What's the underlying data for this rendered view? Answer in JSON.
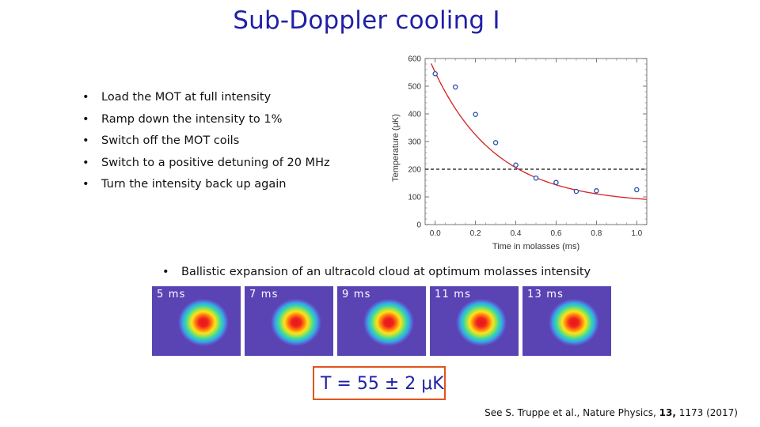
{
  "title": "Sub-Doppler cooling I",
  "steps": [
    "Load the MOT at full intensity",
    "Ramp down the intensity to 1%",
    "Switch off the MOT coils",
    "Switch to a positive detuning of 20 MHz",
    "Turn the intensity back up again"
  ],
  "bullet_char": "•",
  "chart_data": {
    "type": "scatter",
    "title": "",
    "xlabel": "Time in molasses (ms)",
    "ylabel": "Temperature (μK)",
    "xlim": [
      -0.05,
      1.05
    ],
    "ylim": [
      0,
      600
    ],
    "x_ticks": [
      "0.0",
      "0.2",
      "0.4",
      "0.6",
      "0.8",
      "1.0"
    ],
    "y_ticks": [
      "0",
      "100",
      "200",
      "300",
      "400",
      "500",
      "600"
    ],
    "x_tick_values": [
      0.0,
      0.2,
      0.4,
      0.6,
      0.8,
      1.0
    ],
    "y_tick_values": [
      0,
      100,
      200,
      300,
      400,
      500,
      600
    ],
    "points": [
      {
        "x": 0.0,
        "y": 545
      },
      {
        "x": 0.1,
        "y": 497
      },
      {
        "x": 0.2,
        "y": 398
      },
      {
        "x": 0.3,
        "y": 296
      },
      {
        "x": 0.4,
        "y": 215
      },
      {
        "x": 0.5,
        "y": 168
      },
      {
        "x": 0.6,
        "y": 152
      },
      {
        "x": 0.7,
        "y": 120
      },
      {
        "x": 0.8,
        "y": 122
      },
      {
        "x": 1.0,
        "y": 126
      }
    ],
    "fit": {
      "type": "exponential",
      "a": 475,
      "tau": 0.31,
      "offset": 75
    },
    "reference_line": {
      "y": 200,
      "style": "dashed"
    },
    "point_color": "#2a4fa8",
    "fit_color": "#d42020"
  },
  "expansion": {
    "caption": "Ballistic expansion of an ultracold cloud at optimum molasses intensity",
    "frames": [
      "5 ms",
      "7 ms",
      "9 ms",
      "11 ms",
      "13 ms"
    ]
  },
  "result": "T = 55 ± 2 μK",
  "reference": {
    "prefix": "See S. Truppe et al., Nature Physics, ",
    "volume": "13,",
    "suffix": " 1173 (2017)"
  },
  "colors": {
    "title": "#1f1fa8",
    "result_border": "#e0541b"
  }
}
